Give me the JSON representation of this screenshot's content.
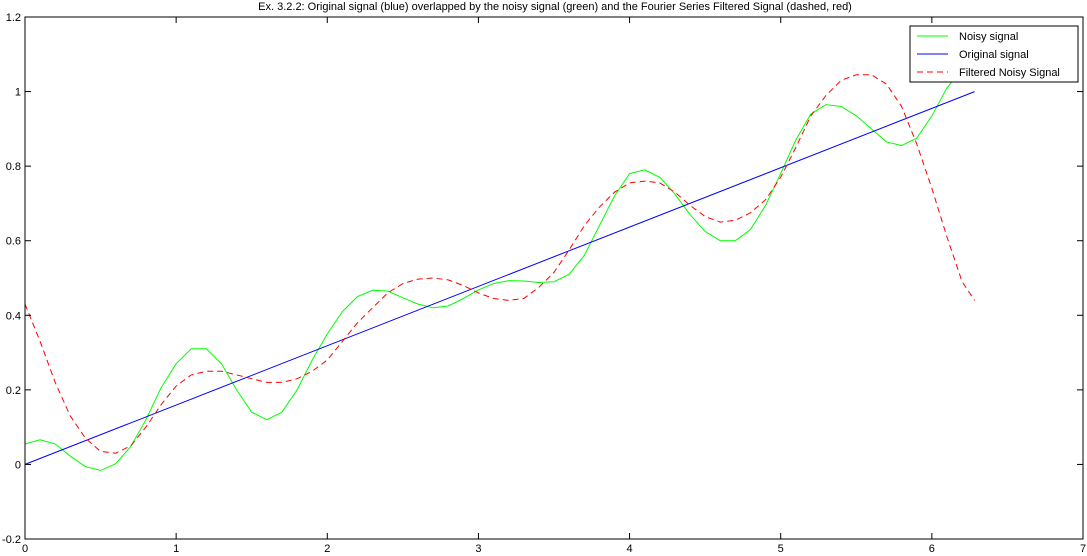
{
  "chart_data": {
    "type": "line",
    "title": "Ex. 3.2.2: Original signal (blue) overlapped by the noisy signal (green) and the Fourier Series Filtered Signal (dashed, red)",
    "xlabel": "",
    "ylabel": "",
    "xlim": [
      0,
      7
    ],
    "ylim": [
      -0.2,
      1.2
    ],
    "xticks": [
      0,
      1,
      2,
      3,
      4,
      5,
      6,
      7
    ],
    "yticks": [
      -0.2,
      0,
      0.2,
      0.4,
      0.6,
      0.8,
      1,
      1.2
    ],
    "grid": false,
    "legend_position": "top-right",
    "series": [
      {
        "name": "Noisy signal",
        "color": "#00ff00",
        "dash": "solid",
        "x": [
          0,
          0.1,
          0.2,
          0.3,
          0.4,
          0.5,
          0.6,
          0.7,
          0.8,
          0.9,
          1.0,
          1.1,
          1.2,
          1.3,
          1.4,
          1.5,
          1.6,
          1.7,
          1.8,
          1.9,
          2.0,
          2.1,
          2.2,
          2.3,
          2.4,
          2.5,
          2.6,
          2.7,
          2.8,
          2.9,
          3.0,
          3.1,
          3.2,
          3.3,
          3.4,
          3.5,
          3.6,
          3.7,
          3.8,
          3.9,
          4.0,
          4.1,
          4.2,
          4.3,
          4.4,
          4.5,
          4.6,
          4.7,
          4.8,
          4.9,
          5.0,
          5.1,
          5.2,
          5.3,
          5.4,
          5.5,
          5.6,
          5.7,
          5.8,
          5.9,
          6.0,
          6.1,
          6.2,
          6.283
        ],
        "y": [
          0.055,
          0.066,
          0.055,
          0.022,
          -0.006,
          -0.016,
          0.002,
          0.048,
          0.12,
          0.205,
          0.27,
          0.31,
          0.31,
          0.27,
          0.2,
          0.14,
          0.12,
          0.14,
          0.2,
          0.28,
          0.35,
          0.41,
          0.45,
          0.467,
          0.465,
          0.447,
          0.43,
          0.42,
          0.425,
          0.445,
          0.468,
          0.485,
          0.493,
          0.492,
          0.488,
          0.49,
          0.51,
          0.56,
          0.64,
          0.72,
          0.78,
          0.79,
          0.77,
          0.725,
          0.67,
          0.625,
          0.6,
          0.6,
          0.63,
          0.695,
          0.78,
          0.87,
          0.94,
          0.965,
          0.96,
          0.935,
          0.9,
          0.865,
          0.855,
          0.875,
          0.935,
          1.01,
          1.06,
          1.08
        ]
      },
      {
        "name": "Original signal",
        "color": "#0000ff",
        "dash": "solid",
        "x": [
          0,
          6.283
        ],
        "y": [
          0,
          1.0
        ]
      },
      {
        "name": "Filtered Noisy Signal",
        "color": "#ff0000",
        "dash": "dashed",
        "x": [
          0,
          0.1,
          0.2,
          0.3,
          0.4,
          0.5,
          0.6,
          0.7,
          0.8,
          0.9,
          1.0,
          1.1,
          1.2,
          1.3,
          1.4,
          1.5,
          1.6,
          1.7,
          1.8,
          1.9,
          2.0,
          2.1,
          2.2,
          2.3,
          2.4,
          2.5,
          2.6,
          2.7,
          2.8,
          2.9,
          3.0,
          3.1,
          3.2,
          3.3,
          3.4,
          3.5,
          3.6,
          3.7,
          3.8,
          3.9,
          4.0,
          4.1,
          4.2,
          4.3,
          4.4,
          4.5,
          4.6,
          4.7,
          4.8,
          4.9,
          5.0,
          5.1,
          5.2,
          5.3,
          5.4,
          5.5,
          5.6,
          5.7,
          5.8,
          5.9,
          6.0,
          6.1,
          6.2,
          6.283
        ],
        "y": [
          0.43,
          0.33,
          0.22,
          0.13,
          0.07,
          0.035,
          0.03,
          0.05,
          0.1,
          0.16,
          0.21,
          0.24,
          0.25,
          0.25,
          0.24,
          0.23,
          0.22,
          0.22,
          0.23,
          0.25,
          0.28,
          0.33,
          0.38,
          0.42,
          0.46,
          0.485,
          0.497,
          0.5,
          0.495,
          0.48,
          0.46,
          0.445,
          0.44,
          0.445,
          0.475,
          0.515,
          0.575,
          0.64,
          0.69,
          0.73,
          0.755,
          0.76,
          0.755,
          0.73,
          0.695,
          0.665,
          0.65,
          0.655,
          0.675,
          0.71,
          0.77,
          0.85,
          0.935,
          0.99,
          1.03,
          1.045,
          1.045,
          1.02,
          0.96,
          0.86,
          0.74,
          0.61,
          0.49,
          0.44
        ]
      }
    ]
  }
}
